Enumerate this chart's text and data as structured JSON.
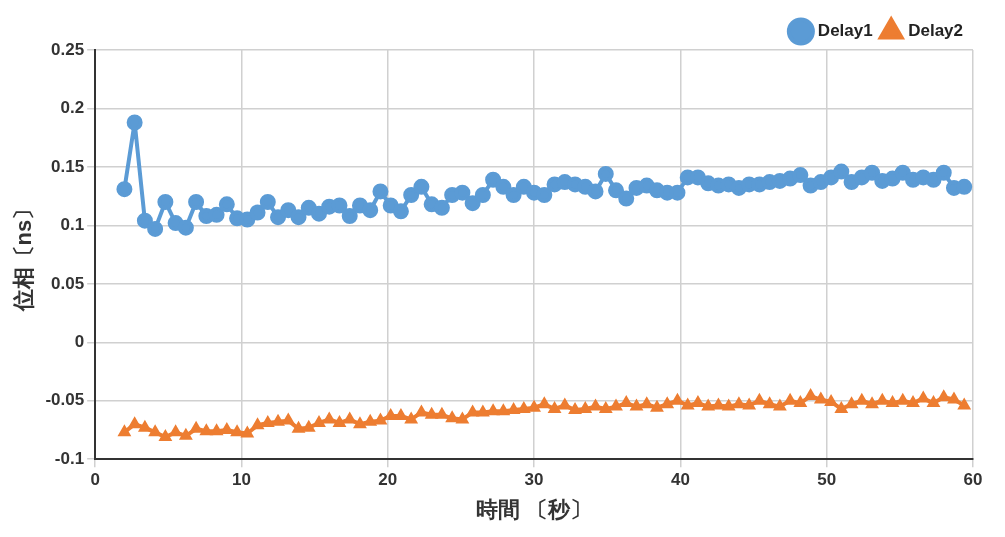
{
  "chart_data": {
    "type": "line",
    "xlabel": "時間 〔秒〕",
    "ylabel": "位相〔ns〕",
    "x": [
      2.0,
      2.7,
      3.4,
      4.1,
      4.8,
      5.5,
      6.2,
      6.9,
      7.6,
      8.3,
      9.0,
      9.7,
      10.4,
      11.1,
      11.8,
      12.5,
      13.2,
      13.9,
      14.6,
      15.3,
      16.0,
      16.7,
      17.4,
      18.1,
      18.8,
      19.5,
      20.2,
      20.9,
      21.6,
      22.3,
      23.0,
      23.7,
      24.4,
      25.1,
      25.8,
      26.5,
      27.2,
      27.9,
      28.6,
      29.3,
      30.0,
      30.7,
      31.4,
      32.1,
      32.8,
      33.5,
      34.2,
      34.9,
      35.6,
      36.3,
      37.0,
      37.7,
      38.4,
      39.1,
      39.8,
      40.5,
      41.2,
      41.9,
      42.6,
      43.3,
      44.0,
      44.7,
      45.4,
      46.1,
      46.8,
      47.5,
      48.2,
      48.9,
      49.6,
      50.3,
      51.0,
      51.7,
      52.4,
      53.1,
      53.8,
      54.5,
      55.2,
      55.9,
      56.6,
      57.3,
      58.0,
      58.7,
      59.4
    ],
    "series": [
      {
        "name": "Delay1",
        "color": "#5b9bd5",
        "marker": "circle",
        "values": [
          0.131,
          0.188,
          0.104,
          0.097,
          0.12,
          0.102,
          0.098,
          0.12,
          0.108,
          0.109,
          0.118,
          0.106,
          0.105,
          0.111,
          0.12,
          0.107,
          0.113,
          0.107,
          0.115,
          0.11,
          0.116,
          0.117,
          0.108,
          0.117,
          0.113,
          0.129,
          0.117,
          0.112,
          0.126,
          0.133,
          0.118,
          0.115,
          0.126,
          0.128,
          0.119,
          0.126,
          0.139,
          0.133,
          0.126,
          0.133,
          0.128,
          0.126,
          0.135,
          0.137,
          0.135,
          0.133,
          0.129,
          0.144,
          0.13,
          0.123,
          0.132,
          0.134,
          0.13,
          0.128,
          0.128,
          0.141,
          0.141,
          0.136,
          0.134,
          0.135,
          0.132,
          0.135,
          0.135,
          0.137,
          0.138,
          0.14,
          0.143,
          0.134,
          0.137,
          0.141,
          0.146,
          0.137,
          0.141,
          0.145,
          0.138,
          0.14,
          0.145,
          0.139,
          0.141,
          0.139,
          0.145,
          0.132,
          0.133
        ]
      },
      {
        "name": "Delay2",
        "color": "#ed7d31",
        "marker": "triangle",
        "values": [
          -0.077,
          -0.07,
          -0.073,
          -0.077,
          -0.081,
          -0.077,
          -0.08,
          -0.074,
          -0.076,
          -0.076,
          -0.075,
          -0.077,
          -0.078,
          -0.071,
          -0.069,
          -0.068,
          -0.067,
          -0.074,
          -0.073,
          -0.069,
          -0.066,
          -0.069,
          -0.066,
          -0.07,
          -0.068,
          -0.067,
          -0.063,
          -0.063,
          -0.066,
          -0.06,
          -0.062,
          -0.062,
          -0.065,
          -0.066,
          -0.06,
          -0.06,
          -0.059,
          -0.059,
          -0.058,
          -0.057,
          -0.056,
          -0.053,
          -0.057,
          -0.054,
          -0.058,
          -0.057,
          -0.055,
          -0.057,
          -0.055,
          -0.052,
          -0.055,
          -0.053,
          -0.056,
          -0.053,
          -0.05,
          -0.054,
          -0.052,
          -0.055,
          -0.054,
          -0.055,
          -0.053,
          -0.054,
          -0.05,
          -0.053,
          -0.055,
          -0.05,
          -0.052,
          -0.046,
          -0.049,
          -0.051,
          -0.057,
          -0.053,
          -0.05,
          -0.053,
          -0.05,
          -0.052,
          -0.05,
          -0.052,
          -0.048,
          -0.052,
          -0.047,
          -0.049,
          -0.054
        ]
      }
    ],
    "xlim": [
      0,
      60
    ],
    "xticks": [
      0,
      10,
      20,
      30,
      40,
      50,
      60
    ],
    "ylim": [
      -0.1,
      0.25
    ],
    "yticks": [
      -0.1,
      -0.05,
      0,
      0.05,
      0.1,
      0.15,
      0.2,
      0.25
    ],
    "grid": true,
    "legend": "top right",
    "line_style": "solid"
  }
}
